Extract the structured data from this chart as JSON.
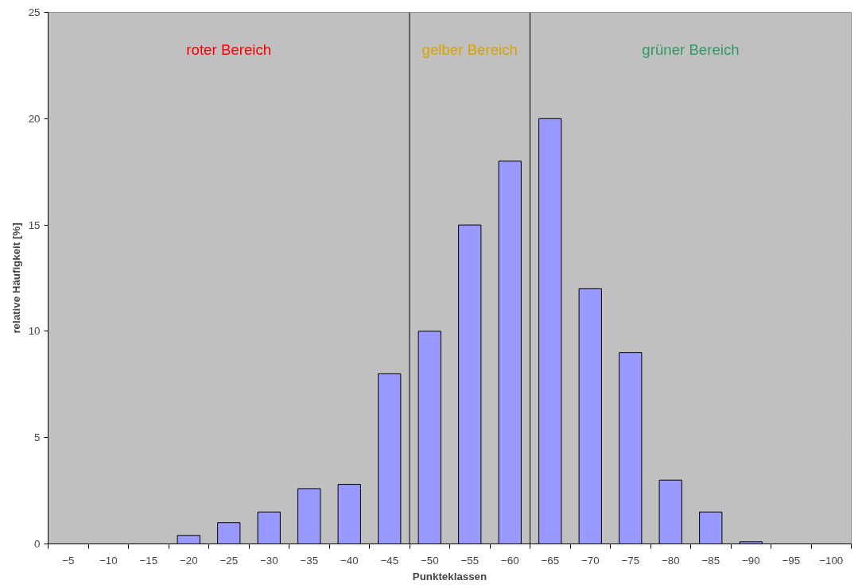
{
  "chart_data": {
    "type": "bar",
    "xlabel": "Punkteklassen",
    "ylabel": "relative Häufigkeit [%]",
    "x": [
      -5,
      -10,
      -15,
      -20,
      -25,
      -30,
      -35,
      -40,
      -45,
      -50,
      -55,
      -60,
      -65,
      -70,
      -75,
      -80,
      -85,
      -90,
      -95,
      -100
    ],
    "xlim": [
      -2.5,
      -102.5
    ],
    "xticks": [
      -5,
      -10,
      -15,
      -20,
      -25,
      -30,
      -35,
      -40,
      -45,
      -50,
      -55,
      -60,
      -65,
      -70,
      -75,
      -80,
      -85,
      -90,
      -95,
      -100
    ],
    "values": [
      0,
      0,
      0,
      0.4,
      1.0,
      1.5,
      2.6,
      2.8,
      8,
      10,
      15,
      18,
      20,
      12,
      9,
      3,
      1.5,
      0.1,
      0,
      0
    ],
    "color": "#9999ff",
    "ylim": [
      0,
      25
    ],
    "yticks": [
      0,
      5,
      10,
      15,
      20,
      25
    ],
    "grid": "y",
    "ref_lines": [
      {
        "axis": "x",
        "value": -47.5,
        "color": "#000000"
      },
      {
        "axis": "x",
        "value": -62.5,
        "color": "#000000"
      }
    ],
    "bands": [
      {
        "axis": "x",
        "from": -2.5,
        "to": -47.5,
        "label": "roter Bereich",
        "color": "#c0c0c0"
      },
      {
        "axis": "x",
        "from": -47.5,
        "to": -62.5,
        "label": "gelber Bereich",
        "color": "#c0c0c0"
      },
      {
        "axis": "x",
        "from": -62.5,
        "to": -102.5,
        "label": "grüner Bereich",
        "color": "#c0c0c0"
      }
    ]
  }
}
